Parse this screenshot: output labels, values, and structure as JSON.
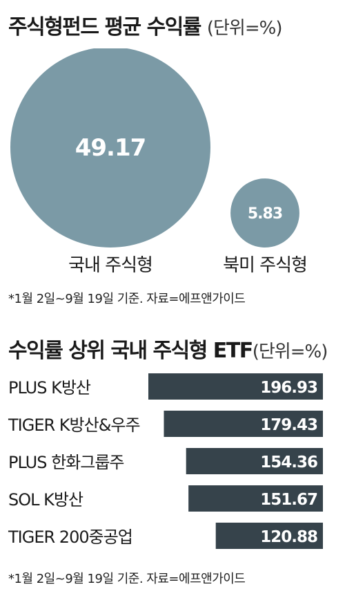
{
  "bubble_title": "주식형펀드 평균 수익률",
  "bubble_unit": "(단위=%)",
  "bubble_note": "*1월 2일~9월 19일 기준. 자료=에프앤가이드",
  "bar_title": "수익률 상위 국내 주식형 ETF",
  "bar_unit": "(단위=%)",
  "bar_note": "*1월 2일~9월 19일 기준. 자료=에프앤가이드",
  "colors": {
    "bubble": "#7b9aa6",
    "bar": "#36434b",
    "value_text": "#ffffff"
  },
  "chart_data": [
    {
      "type": "bubble",
      "title": "주식형펀드 평균 수익률",
      "unit": "(단위=%)",
      "categories": [
        "국내 주식형",
        "북미 주식형"
      ],
      "values": [
        49.17,
        5.83
      ],
      "value_labels": [
        "49.17",
        "5.83"
      ]
    },
    {
      "type": "bar",
      "orientation": "horizontal",
      "title": "수익률 상위 국내 주식형 ETF",
      "unit": "(단위=%)",
      "categories": [
        "PLUS K방산",
        "TIGER K방산&우주",
        "PLUS 한화그룹주",
        "SOL K방산",
        "TIGER 200중공업"
      ],
      "values": [
        196.93,
        179.43,
        154.36,
        151.67,
        120.88
      ],
      "value_labels": [
        "196.93",
        "179.43",
        "154.36",
        "151.67",
        "120.88"
      ],
      "xlim": [
        0,
        196.93
      ]
    }
  ]
}
